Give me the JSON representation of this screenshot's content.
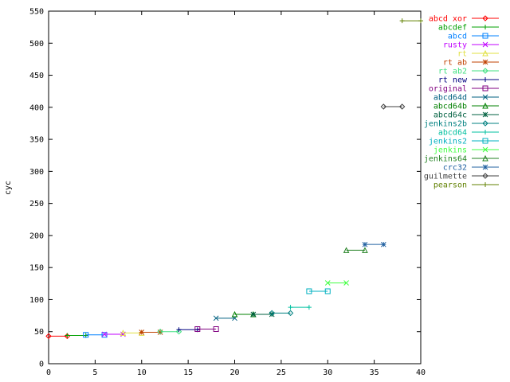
{
  "chart_data": {
    "type": "line",
    "title": "",
    "xlabel": "",
    "ylabel": "cyc",
    "xlim": [
      0,
      40
    ],
    "ylim": [
      0,
      550
    ],
    "x_ticks": [
      0,
      5,
      10,
      15,
      20,
      25,
      30,
      35,
      40
    ],
    "y_ticks": [
      0,
      50,
      100,
      150,
      200,
      250,
      300,
      350,
      400,
      450,
      500,
      550
    ],
    "grid": false,
    "legend_position": "right",
    "series": [
      {
        "name": "abcd xor",
        "color": "#ff0000",
        "marker": "diamond",
        "x": [
          0,
          2
        ],
        "y": [
          43,
          43
        ]
      },
      {
        "name": "abcdef",
        "color": "#00a000",
        "marker": "plus",
        "x": [
          2,
          4
        ],
        "y": [
          44,
          44
        ]
      },
      {
        "name": "abcd",
        "color": "#0080ff",
        "marker": "square",
        "x": [
          4,
          6
        ],
        "y": [
          45,
          45
        ]
      },
      {
        "name": "rusty",
        "color": "#c000ff",
        "marker": "cross",
        "x": [
          6,
          8
        ],
        "y": [
          46,
          46
        ]
      },
      {
        "name": "rt",
        "color": "#e0e040",
        "marker": "triangle",
        "x": [
          8,
          10
        ],
        "y": [
          48,
          48
        ]
      },
      {
        "name": "rt ab",
        "color": "#c04000",
        "marker": "star",
        "x": [
          10,
          12
        ],
        "y": [
          49,
          49
        ]
      },
      {
        "name": "rt ab2",
        "color": "#40e080",
        "marker": "diamond",
        "x": [
          12,
          14
        ],
        "y": [
          50,
          50
        ]
      },
      {
        "name": "rt new",
        "color": "#000080",
        "marker": "plus",
        "x": [
          14,
          16
        ],
        "y": [
          53,
          53
        ]
      },
      {
        "name": "original",
        "color": "#800080",
        "marker": "square",
        "x": [
          16,
          18
        ],
        "y": [
          54,
          54
        ]
      },
      {
        "name": "abcd64d",
        "color": "#006080",
        "marker": "cross",
        "x": [
          18,
          20
        ],
        "y": [
          71,
          71
        ]
      },
      {
        "name": "abcd64b",
        "color": "#008000",
        "marker": "triangle",
        "x": [
          20,
          22
        ],
        "y": [
          77,
          77
        ]
      },
      {
        "name": "abcd64c",
        "color": "#006040",
        "marker": "star",
        "x": [
          22,
          24
        ],
        "y": [
          77,
          77
        ]
      },
      {
        "name": "jenkins2b",
        "color": "#008080",
        "marker": "diamond",
        "x": [
          24,
          26
        ],
        "y": [
          79,
          79
        ]
      },
      {
        "name": "abcd64",
        "color": "#00c0a0",
        "marker": "plus",
        "x": [
          26,
          28
        ],
        "y": [
          88,
          88
        ]
      },
      {
        "name": "jenkins2",
        "color": "#00b0c0",
        "marker": "square",
        "x": [
          28,
          30
        ],
        "y": [
          113,
          113
        ]
      },
      {
        "name": "jenkins",
        "color": "#40ff40",
        "marker": "cross",
        "x": [
          30,
          32
        ],
        "y": [
          126,
          126
        ]
      },
      {
        "name": "jenkins64",
        "color": "#208020",
        "marker": "triangle",
        "x": [
          32,
          34
        ],
        "y": [
          177,
          177
        ]
      },
      {
        "name": "crc32",
        "color": "#2060a0",
        "marker": "star",
        "x": [
          34,
          36
        ],
        "y": [
          186,
          186
        ]
      },
      {
        "name": "guilmette",
        "color": "#404040",
        "marker": "diamond",
        "x": [
          36,
          38
        ],
        "y": [
          401,
          401
        ]
      },
      {
        "name": "pearson",
        "color": "#608000",
        "marker": "plus",
        "x": [
          38,
          40
        ],
        "y": [
          535,
          535
        ]
      }
    ]
  }
}
